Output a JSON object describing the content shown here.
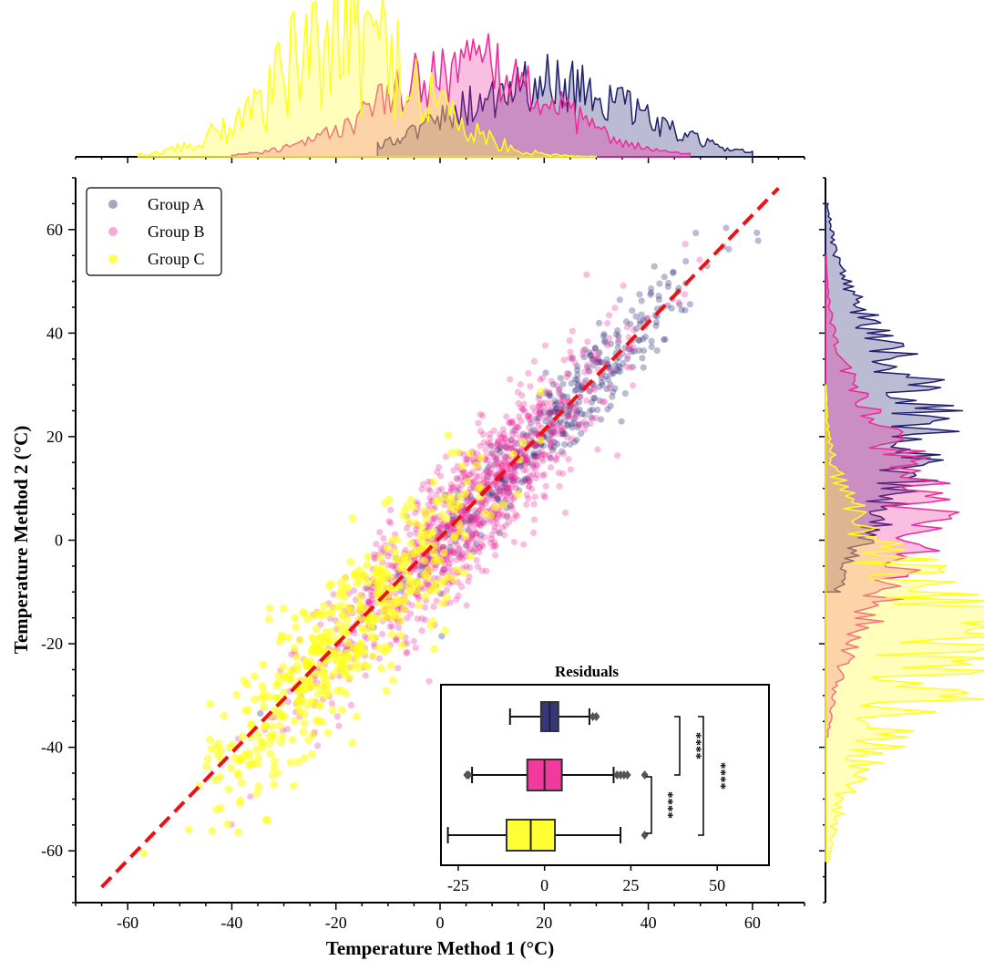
{
  "chart_data": {
    "type": "scatter",
    "xlabel": "Temperature Method 1 (°C)",
    "ylabel": "Temperature Method 2 (°C)",
    "xlim": [
      -70,
      70
    ],
    "ylim": [
      -70,
      70
    ],
    "x_ticks": [
      -60,
      -40,
      -20,
      0,
      20,
      40,
      60
    ],
    "y_ticks": [
      -60,
      -40,
      -20,
      0,
      20,
      40,
      60
    ],
    "legend_position": "upper-left",
    "colors": {
      "Group A": "#1f1f6e",
      "Group B": "#f0289a",
      "Group C": "#ffff1a",
      "reference_line": "#ee1111"
    },
    "series": [
      {
        "name": "Group A",
        "n": 420,
        "x_mean": 22,
        "x_sd": 14,
        "residual_sd": 4.5
      },
      {
        "name": "Group B",
        "n": 1100,
        "x_mean": 5,
        "x_sd": 14,
        "residual_sd": 6.5
      },
      {
        "name": "Group C",
        "n": 500,
        "x_mean": -18,
        "x_sd": 13,
        "residual_sd": 7.5
      }
    ],
    "reference_line": {
      "x": [
        -65,
        65
      ],
      "y": [
        -67,
        68
      ]
    },
    "marginal_x": {
      "type": "area",
      "range": [
        -60,
        60
      ],
      "series": [
        {
          "name": "Group A",
          "peak_x": 20,
          "spread": 17
        },
        {
          "name": "Group B",
          "peak_x": 5,
          "spread": 16
        },
        {
          "name": "Group C",
          "peak_x": -18,
          "spread": 14
        }
      ]
    },
    "marginal_y": {
      "type": "area",
      "range": [
        -62,
        65
      ],
      "series": [
        {
          "name": "Group A",
          "peak_y": 22,
          "spread": 16
        },
        {
          "name": "Group B",
          "peak_y": 5,
          "spread": 16
        },
        {
          "name": "Group C",
          "peak_y": -20,
          "spread": 15
        }
      ]
    },
    "inset": {
      "type": "boxplot",
      "title": "Residuals",
      "xlim": [
        -30,
        65
      ],
      "x_ticks": [
        -25,
        0,
        25,
        50
      ],
      "boxes": [
        {
          "name": "Group A",
          "whisker_low": -10,
          "q1": -1,
          "median": 1.5,
          "q3": 4,
          "whisker_high": 13,
          "outliers": [
            14,
            15
          ]
        },
        {
          "name": "Group B",
          "whisker_low": -21,
          "q1": -5,
          "median": 0,
          "q3": 5,
          "whisker_high": 20,
          "outliers": [
            -22,
            -22.5,
            21,
            22,
            23,
            24,
            29
          ]
        },
        {
          "name": "Group C",
          "whisker_low": -28,
          "q1": -11,
          "median": -4,
          "q3": 3,
          "whisker_high": 22,
          "outliers": [
            29
          ]
        }
      ],
      "significance": [
        {
          "pair": [
            "Group A",
            "Group B"
          ],
          "label": "****"
        },
        {
          "pair": [
            "Group B",
            "Group C"
          ],
          "label": "****"
        },
        {
          "pair": [
            "Group A",
            "Group C"
          ],
          "label": "****"
        }
      ]
    }
  }
}
